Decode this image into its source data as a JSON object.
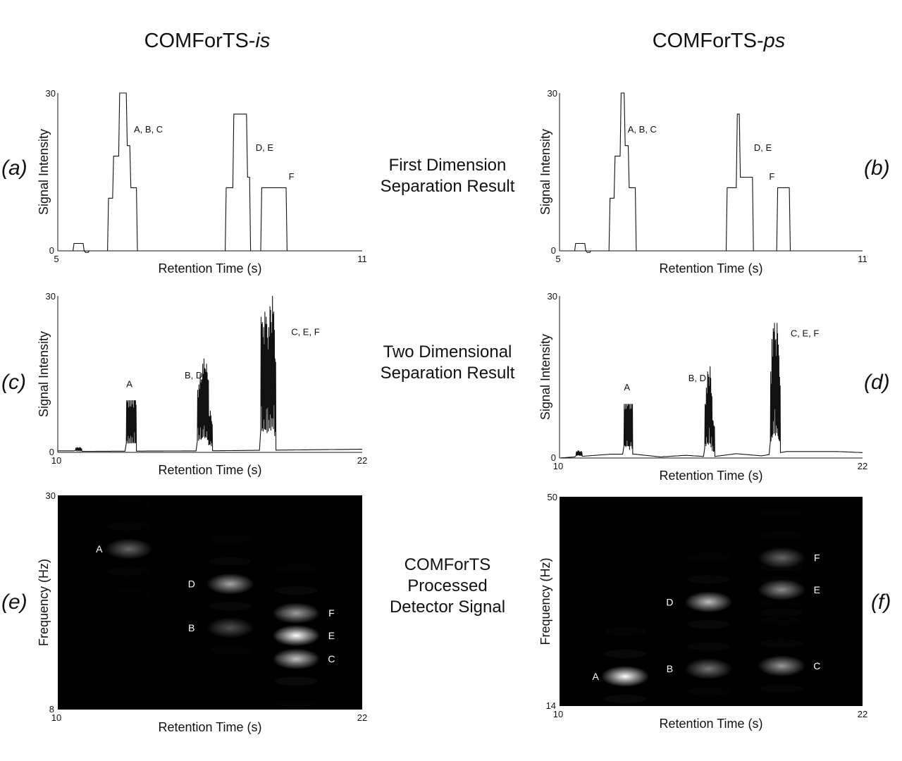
{
  "titles": {
    "left_prefix": "COMForTS-",
    "left_suffix": "is",
    "right_prefix": "COMForTS-",
    "right_suffix": "ps"
  },
  "row_titles": {
    "row1": [
      "First Dimension",
      "Separation Result"
    ],
    "row2": [
      "Two Dimensional",
      "Separation Result"
    ],
    "row3": [
      "COMForTS",
      "Processed",
      "Detector Signal"
    ]
  },
  "panel_labels": [
    "(a)",
    "(b)",
    "(c)",
    "(d)",
    "(e)",
    "(f)"
  ],
  "colors": {
    "line": "#111111",
    "heatmap_bg": "#000000",
    "heatmap_text": "#ffffff"
  },
  "chart_data": [
    {
      "id": "a",
      "type": "line",
      "xlabel": "Retention Time (s)",
      "ylabel": "Signal Intensity",
      "xlim": [
        5,
        11
      ],
      "ylim": [
        0,
        30
      ],
      "xticks": [
        "5",
        "11"
      ],
      "yticks": [
        "0",
        "30"
      ],
      "x": [
        5.0,
        5.3,
        5.32,
        5.5,
        5.52,
        5.55,
        5.6,
        5.62,
        5.65,
        5.98,
        6.0,
        6.08,
        6.1,
        6.2,
        6.22,
        6.35,
        6.37,
        6.42,
        6.44,
        6.5,
        6.52,
        6.55,
        6.57,
        8.3,
        8.32,
        8.45,
        8.47,
        8.5,
        8.52,
        8.72,
        8.74,
        8.78,
        8.8,
        9.0,
        9.02,
        9.5,
        9.52,
        10.0,
        10.02,
        11.0
      ],
      "y": [
        0,
        0,
        1.4,
        1.4,
        0,
        -0.3,
        -0.3,
        0,
        0,
        0,
        10,
        10,
        18,
        18,
        30,
        30,
        20,
        20,
        12,
        12,
        12,
        12,
        0,
        0,
        12,
        12,
        26,
        26,
        26,
        26,
        14,
        14,
        0,
        0,
        12,
        12,
        0,
        0,
        0,
        0
      ],
      "annotations": [
        {
          "text": "A, B, C",
          "x": 6.5,
          "y": 22.5
        },
        {
          "text": "D, E",
          "x": 8.9,
          "y": 19
        },
        {
          "text": "F",
          "x": 9.55,
          "y": 13.5
        }
      ]
    },
    {
      "id": "b",
      "type": "line",
      "xlabel": "Retention Time (s)",
      "ylabel": "Signal Intensity",
      "xlim": [
        5,
        11
      ],
      "ylim": [
        0,
        30
      ],
      "xticks": [
        "5",
        "11"
      ],
      "yticks": [
        "0",
        "30"
      ],
      "x": [
        5.0,
        5.3,
        5.32,
        5.5,
        5.52,
        5.55,
        5.6,
        5.62,
        5.65,
        5.98,
        6.0,
        6.08,
        6.1,
        6.2,
        6.22,
        6.28,
        6.3,
        6.36,
        6.38,
        6.5,
        6.52,
        8.3,
        8.32,
        8.5,
        8.52,
        8.56,
        8.58,
        8.82,
        8.84,
        9.3,
        9.32,
        9.55,
        9.57,
        11.0
      ],
      "y": [
        0,
        0,
        1.4,
        1.4,
        0,
        -0.3,
        -0.3,
        0,
        0,
        0,
        10,
        10,
        18,
        18,
        30,
        30,
        20,
        20,
        12,
        12,
        0,
        0,
        12,
        12,
        26,
        26,
        14,
        14,
        0,
        0,
        12,
        12,
        0,
        0
      ],
      "annotations": [
        {
          "text": "A, B, C",
          "x": 6.35,
          "y": 22.5
        },
        {
          "text": "D, E",
          "x": 8.85,
          "y": 19
        },
        {
          "text": "F",
          "x": 9.15,
          "y": 13.5
        }
      ]
    },
    {
      "id": "c",
      "type": "line",
      "xlabel": "Retention Time (s)",
      "ylabel": "Signal Intensity",
      "xlim": [
        10,
        22
      ],
      "ylim": [
        0,
        30
      ],
      "xticks": [
        "10",
        "22"
      ],
      "yticks": [
        "0",
        "30"
      ],
      "baseline": [
        [
          10.0,
          0.3
        ],
        [
          10.7,
          0.3
        ],
        [
          11.0,
          0.2
        ],
        [
          16.0,
          0.3
        ],
        [
          22.0,
          0.6
        ]
      ],
      "bursts": [
        {
          "x_start": 10.7,
          "x_end": 10.95,
          "peaks": [
            0.9,
            1.0,
            0.9,
            1.0,
            0.8
          ]
        },
        {
          "x_start": 12.7,
          "x_end": 13.1,
          "peaks": [
            10,
            10,
            10,
            10,
            10,
            10,
            10,
            10
          ]
        },
        {
          "x_start": 15.5,
          "x_end": 16.1,
          "peaks": [
            12,
            13,
            15,
            14,
            17,
            18,
            16,
            17,
            14,
            7,
            8,
            6
          ]
        },
        {
          "x_start": 18.0,
          "x_end": 18.6,
          "peaks": [
            26,
            25,
            24,
            27,
            26,
            22,
            24,
            28,
            25,
            30,
            27,
            18
          ]
        }
      ],
      "annotations": [
        {
          "text": "A",
          "x": 12.7,
          "y": 12.5
        },
        {
          "text": "B, D",
          "x": 15.0,
          "y": 14.2
        },
        {
          "text": "C, E, F",
          "x": 19.2,
          "y": 22.5
        }
      ]
    },
    {
      "id": "d",
      "type": "line",
      "xlabel": "Retention Time (s)",
      "ylabel": "Signal Intensity",
      "xlim": [
        10,
        22
      ],
      "ylim": [
        0,
        30
      ],
      "xticks": [
        "10",
        "22"
      ],
      "yticks": [
        "0",
        "30"
      ],
      "baseline": [
        [
          10.0,
          0.0
        ],
        [
          12.0,
          0.7
        ],
        [
          13.0,
          0.7
        ],
        [
          14.0,
          0.2
        ],
        [
          15.0,
          0.5
        ],
        [
          16.0,
          0.2
        ],
        [
          17.0,
          0.8
        ],
        [
          18.0,
          0.4
        ],
        [
          19.0,
          1.2
        ],
        [
          21.0,
          1.2
        ],
        [
          22.0,
          1.0
        ]
      ],
      "bursts": [
        {
          "x_start": 10.65,
          "x_end": 10.9,
          "peaks": [
            1.2,
            1.4,
            1.2,
            1.3
          ]
        },
        {
          "x_start": 12.55,
          "x_end": 12.9,
          "peaks": [
            10,
            10,
            10,
            10,
            10,
            10,
            10
          ]
        },
        {
          "x_start": 15.75,
          "x_end": 16.15,
          "peaks": [
            10,
            13,
            16,
            15,
            17,
            12,
            7,
            6
          ]
        },
        {
          "x_start": 18.35,
          "x_end": 18.75,
          "peaks": [
            16,
            22,
            24,
            25,
            22,
            25,
            21,
            15
          ]
        }
      ],
      "annotations": [
        {
          "text": "A",
          "x": 12.55,
          "y": 12.5
        },
        {
          "text": "B, D",
          "x": 15.1,
          "y": 14.2
        },
        {
          "text": "C, E, F",
          "x": 19.15,
          "y": 22.5
        }
      ]
    },
    {
      "id": "e",
      "type": "heatmap",
      "xlabel": "Retention Time (s)",
      "ylabel": "Frequency (Hz)",
      "xlim": [
        10,
        22
      ],
      "ylim": [
        8,
        30
      ],
      "xticks": [
        "10",
        "22"
      ],
      "yticks": [
        "8",
        "30"
      ],
      "spots": [
        {
          "label": "A",
          "x": 12.8,
          "y": 24.5,
          "intensity": 0.4
        },
        {
          "label": "D",
          "x": 16.8,
          "y": 20.9,
          "intensity": 0.65
        },
        {
          "label": "B",
          "x": 16.8,
          "y": 16.4,
          "intensity": 0.3
        },
        {
          "label": "F",
          "x": 19.4,
          "y": 17.9,
          "intensity": 0.6
        },
        {
          "label": "E",
          "x": 19.4,
          "y": 15.6,
          "intensity": 1.0
        },
        {
          "label": "C",
          "x": 19.4,
          "y": 13.2,
          "intensity": 0.75
        }
      ]
    },
    {
      "id": "f",
      "type": "heatmap",
      "xlabel": "Retention Time (s)",
      "ylabel": "Frequency (Hz)",
      "xlim": [
        10,
        22
      ],
      "ylim": [
        14,
        50
      ],
      "xticks": [
        "10",
        "22"
      ],
      "yticks": [
        "14",
        "50"
      ],
      "spots": [
        {
          "label": "A",
          "x": 12.6,
          "y": 19.1,
          "intensity": 1.0
        },
        {
          "label": "D",
          "x": 15.9,
          "y": 31.9,
          "intensity": 0.75
        },
        {
          "label": "B",
          "x": 15.9,
          "y": 20.4,
          "intensity": 0.45
        },
        {
          "label": "F",
          "x": 18.8,
          "y": 39.5,
          "intensity": 0.4
        },
        {
          "label": "E",
          "x": 18.8,
          "y": 34.0,
          "intensity": 0.55
        },
        {
          "label": "C",
          "x": 18.8,
          "y": 20.9,
          "intensity": 0.6
        }
      ]
    }
  ]
}
